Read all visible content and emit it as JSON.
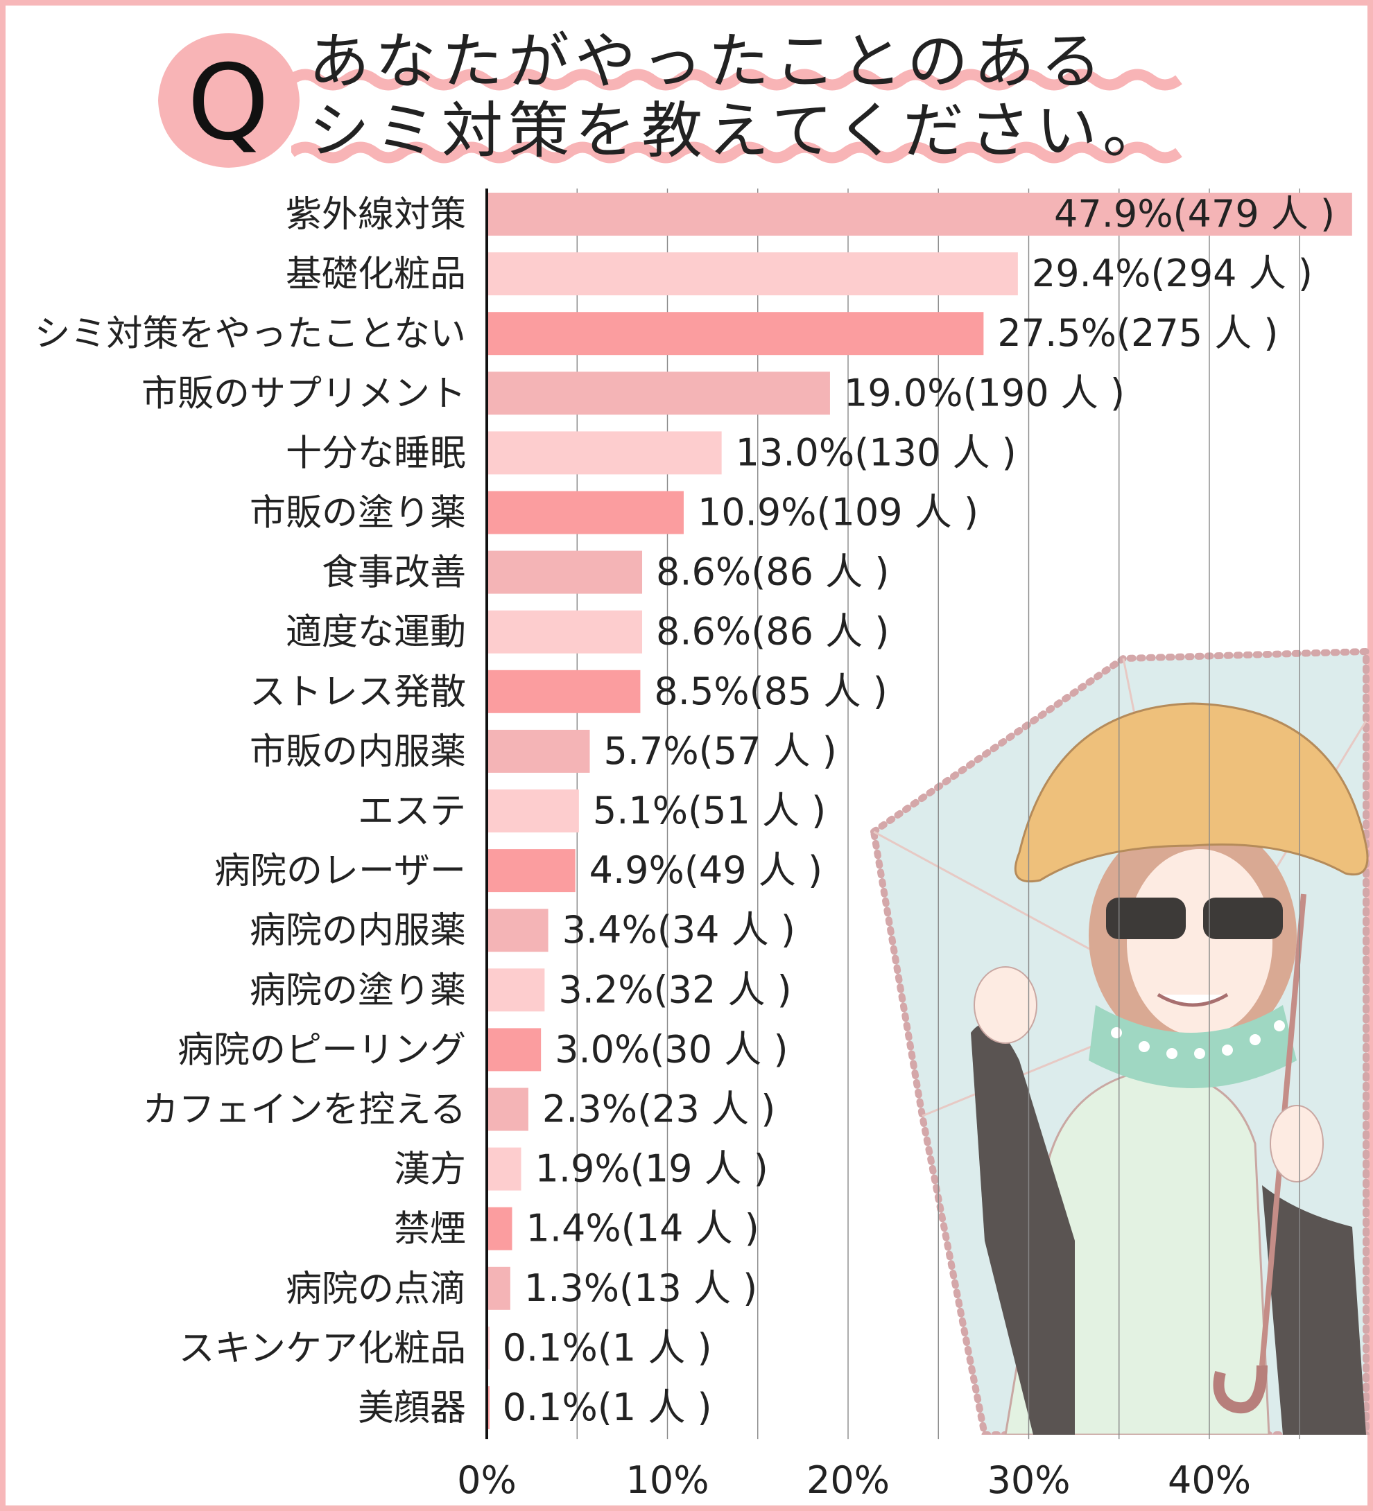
{
  "header": {
    "q_letter": "Q",
    "title_line1": "あなたがやったことのある",
    "title_line2": "シミ対策を教えてください。"
  },
  "colors": {
    "frame": "#f7b7b9",
    "bar_palette": [
      "#f4b4b6",
      "#fdcdce",
      "#fb9d9f"
    ],
    "badge": "#f8b4b6",
    "wave": "#f8b4b6"
  },
  "chart_data": {
    "type": "bar",
    "orientation": "horizontal",
    "categories": [
      "紫外線対策",
      "基礎化粧品",
      "シミ対策をやったことない",
      "市販のサプリメント",
      "十分な睡眠",
      "市販の塗り薬",
      "食事改善",
      "適度な運動",
      "ストレス発散",
      "市販の内服薬",
      "エステ",
      "病院のレーザー",
      "病院の内服薬",
      "病院の塗り薬",
      "病院のピーリング",
      "カフェインを控える",
      "漢方",
      "禁煙",
      "病院の点滴",
      "スキンケア化粧品",
      "美顔器"
    ],
    "values": [
      47.9,
      29.4,
      27.5,
      19.0,
      13.0,
      10.9,
      8.6,
      8.6,
      8.5,
      5.7,
      5.1,
      4.9,
      3.4,
      3.2,
      3.0,
      2.3,
      1.9,
      1.4,
      1.3,
      0.1,
      0.1
    ],
    "data_labels": [
      "47.9%(479 人 )",
      "29.4%(294 人 )",
      "27.5%(275 人 )",
      "19.0%(190 人 )",
      "13.0%(130 人 )",
      "10.9%(109 人 )",
      "8.6%(86 人 )",
      "8.6%(86 人 )",
      "8.5%(85 人 )",
      "5.7%(57 人 )",
      "5.1%(51 人 )",
      "4.9%(49 人 )",
      "3.4%(34 人 )",
      "3.2%(32 人 )",
      "3.0%(30 人 )",
      "2.3%(23 人 )",
      "1.9%(19 人 )",
      "1.4%(14 人 )",
      "1.3%(13 人 )",
      "0.1%(1 人 )",
      "0.1%(1 人 )"
    ],
    "x_ticks": [
      "0%",
      "10%",
      "20%",
      "30%",
      "40%"
    ],
    "x_tick_values": [
      0,
      10,
      20,
      30,
      40
    ],
    "xlim": [
      0,
      48
    ],
    "grid": true
  }
}
